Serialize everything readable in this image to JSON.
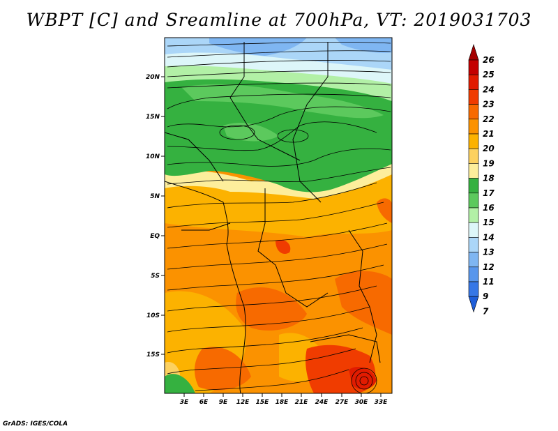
{
  "title": "WBPT [C] and Sreamline at 700hPa, VT: 2019031703",
  "footer": "GrADS: IGES/COLA",
  "map": {
    "lat_labels": [
      "20N",
      "15N",
      "10N",
      "5N",
      "EQ",
      "5S",
      "10S",
      "15S"
    ],
    "lon_labels": [
      "3E",
      "6E",
      "9E",
      "12E",
      "15E",
      "18E",
      "21E",
      "24E",
      "27E",
      "30E",
      "33E"
    ],
    "colorbar_levels": [
      "26",
      "25",
      "24",
      "23",
      "22",
      "21",
      "20",
      "19",
      "18",
      "17",
      "16",
      "15",
      "14",
      "13",
      "12",
      "11",
      "9",
      "7"
    ],
    "colorbar_colors": [
      "#a50000",
      "#c40000",
      "#e11b00",
      "#f03c00",
      "#f76a00",
      "#fb9200",
      "#fcb200",
      "#fcd160",
      "#fdee9c",
      "#35b140",
      "#5cc95d",
      "#b2f0a6",
      "#ddf6f9",
      "#abd6f8",
      "#7fb6f2",
      "#5896ec",
      "#3677e6",
      "#1e5ed9"
    ]
  }
}
